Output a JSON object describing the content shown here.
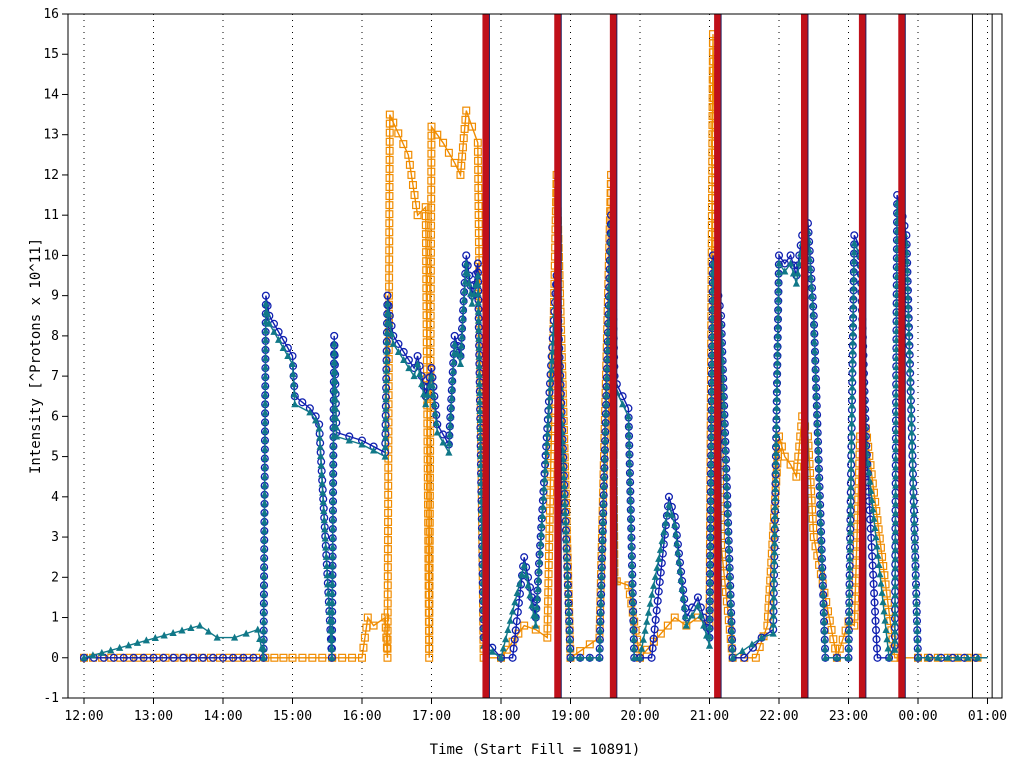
{
  "chart_data": {
    "type": "line",
    "title": "",
    "xlabel": "Time (Start Fill = 10891)",
    "ylabel": "Intensity [^Protons x 10^11]",
    "ylim": [
      -1,
      16
    ],
    "xlim": [
      "12:00",
      "01:00"
    ],
    "x_tick_labels": [
      "12:00",
      "13:00",
      "14:00",
      "15:00",
      "16:00",
      "17:00",
      "18:00",
      "19:00",
      "20:00",
      "21:00",
      "22:00",
      "23:00",
      "00:00",
      "01:00"
    ],
    "y_tick_labels": [
      "-1",
      "0",
      "1",
      "2",
      "3",
      "4",
      "5",
      "6",
      "7",
      "8",
      "9",
      "10",
      "11",
      "12",
      "13",
      "14",
      "15",
      "16"
    ],
    "grid": "dotted vertical at each hour",
    "legend": "none",
    "beam_markers": {
      "color": "#c0101a",
      "times": [
        "17:47",
        "18:49",
        "19:37",
        "21:07",
        "22:22",
        "23:12",
        "23:46"
      ]
    },
    "reference_lines": {
      "color": "#000000",
      "times": [
        "00:47",
        "01:04"
      ]
    },
    "series": [
      {
        "marker": "circle",
        "color": "#1020b0",
        "x": [
          "12:00",
          "13:00",
          "14:00",
          "14:35",
          "14:37",
          "14:40",
          "15:00",
          "15:02",
          "15:15",
          "15:20",
          "15:23",
          "15:34",
          "15:36",
          "15:38",
          "16:00",
          "16:20",
          "16:22",
          "16:24",
          "16:27",
          "16:45",
          "16:48",
          "16:55",
          "17:00",
          "17:05",
          "17:15",
          "17:20",
          "17:25",
          "17:30",
          "17:35",
          "17:40",
          "17:45",
          "18:00",
          "18:10",
          "18:20",
          "18:30",
          "18:48",
          "19:00",
          "19:25",
          "19:35",
          "19:38",
          "19:40",
          "19:50",
          "19:55",
          "20:00",
          "20:10",
          "20:25",
          "20:30",
          "20:40",
          "20:50",
          "21:00",
          "21:03",
          "21:10",
          "21:20",
          "21:30",
          "21:45",
          "21:55",
          "22:00",
          "22:05",
          "22:10",
          "22:15",
          "22:20",
          "22:25",
          "22:30",
          "22:40",
          "22:50",
          "23:00",
          "23:05",
          "23:10",
          "23:15",
          "23:25",
          "23:35",
          "23:40",
          "23:42",
          "23:45",
          "23:50",
          "00:00",
          "00:30",
          "01:00"
        ],
        "y": [
          0,
          0,
          0,
          0,
          9,
          8.5,
          7.5,
          6.5,
          6.2,
          6,
          5.8,
          0,
          8,
          5.6,
          5.4,
          5.1,
          9,
          8.5,
          8,
          7.2,
          7.5,
          6.5,
          7.2,
          5.8,
          5.3,
          8,
          7.5,
          10,
          9,
          9.8,
          0.5,
          0,
          0,
          2.5,
          1,
          9.5,
          0,
          0,
          11,
          7,
          6.8,
          6.2,
          0,
          0,
          0,
          4,
          3.5,
          1,
          1.5,
          0.5,
          10,
          8.5,
          0,
          0,
          0.5,
          0.7,
          10,
          9.8,
          10,
          9.5,
          10.5,
          10.8,
          8.5,
          0,
          0,
          0,
          10.5,
          10.2,
          5.5,
          0,
          0,
          0.3,
          11.5,
          11.2,
          10.5,
          0,
          0,
          0
        ]
      },
      {
        "marker": "triangle",
        "color": "#107888",
        "x": [
          "12:00",
          "13:40",
          "13:55",
          "14:10",
          "14:30",
          "14:35",
          "14:37",
          "14:40",
          "15:00",
          "15:02",
          "15:15",
          "15:20",
          "15:23",
          "15:34",
          "15:36",
          "15:38",
          "16:00",
          "16:20",
          "16:22",
          "16:24",
          "16:27",
          "16:45",
          "16:48",
          "16:55",
          "17:00",
          "17:05",
          "17:15",
          "17:20",
          "17:25",
          "17:30",
          "17:35",
          "17:40",
          "17:45",
          "18:00",
          "18:20",
          "18:30",
          "18:48",
          "19:00",
          "19:25",
          "19:35",
          "19:38",
          "19:40",
          "19:50",
          "19:55",
          "20:00",
          "20:25",
          "20:30",
          "20:40",
          "20:50",
          "21:00",
          "21:03",
          "21:10",
          "21:20",
          "21:45",
          "21:55",
          "22:00",
          "22:05",
          "22:10",
          "22:15",
          "22:20",
          "22:25",
          "22:30",
          "22:40",
          "23:00",
          "23:05",
          "23:10",
          "23:15",
          "23:35",
          "23:40",
          "23:42",
          "23:45",
          "23:50",
          "00:00",
          "01:00"
        ],
        "y": [
          0,
          0.8,
          0.5,
          0.5,
          0.7,
          0,
          8.8,
          8.3,
          7.3,
          6.3,
          6.1,
          5.9,
          5.7,
          0,
          7.8,
          5.5,
          5.3,
          5,
          8.8,
          8.3,
          7.8,
          7,
          7.3,
          6.3,
          7,
          5.6,
          5.1,
          7.8,
          7.3,
          9.8,
          8.8,
          9.5,
          0.3,
          0,
          2.3,
          0.8,
          9.2,
          0,
          0,
          10.8,
          6.8,
          6.6,
          6,
          0,
          0,
          3.8,
          3.3,
          0.8,
          1.3,
          0.3,
          9.8,
          8.3,
          0,
          0.5,
          0.6,
          9.8,
          9.6,
          9.8,
          9.3,
          10.3,
          10.6,
          8.3,
          0,
          0,
          10.3,
          10,
          5.3,
          0,
          0.2,
          11.3,
          11,
          10.3,
          0,
          0
        ]
      },
      {
        "marker": "square",
        "color": "#f08c00",
        "x": [
          "12:00",
          "15:00",
          "16:00",
          "16:05",
          "16:10",
          "16:20",
          "16:22",
          "16:24",
          "16:27",
          "16:40",
          "16:48",
          "16:55",
          "16:58",
          "17:00",
          "17:05",
          "17:10",
          "17:20",
          "17:25",
          "17:30",
          "17:35",
          "17:40",
          "17:45",
          "18:00",
          "18:20",
          "18:30",
          "18:40",
          "18:48",
          "19:00",
          "19:25",
          "19:35",
          "19:38",
          "19:40",
          "19:50",
          "20:00",
          "20:30",
          "20:40",
          "20:50",
          "21:00",
          "21:03",
          "21:10",
          "21:20",
          "21:40",
          "21:50",
          "22:00",
          "22:05",
          "22:10",
          "22:15",
          "22:20",
          "22:25",
          "22:30",
          "22:50",
          "23:00",
          "23:05",
          "23:10",
          "23:15",
          "23:40",
          "23:45",
          "00:00",
          "01:00"
        ],
        "y": [
          0,
          0,
          0,
          1,
          0.8,
          1,
          0,
          13.5,
          13.3,
          12.5,
          11,
          11.2,
          0,
          13.2,
          13,
          12.8,
          12.3,
          12,
          13.6,
          13.2,
          12.8,
          0,
          0,
          0.8,
          0.7,
          0.5,
          12,
          0,
          0.5,
          12,
          1.9,
          1.9,
          1.8,
          0,
          1,
          0.8,
          1,
          0.8,
          15.5,
          2.8,
          0,
          0,
          0.8,
          5.5,
          5,
          4.8,
          4.5,
          6,
          5.5,
          3,
          0,
          0.9,
          0.8,
          5.5,
          5.7,
          0,
          0,
          0,
          0
        ]
      }
    ]
  }
}
